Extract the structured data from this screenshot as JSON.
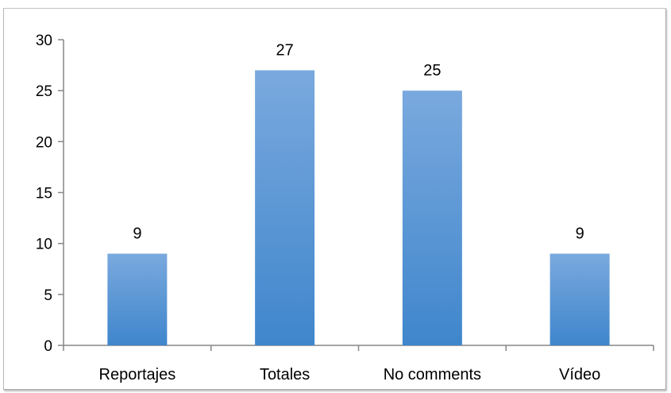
{
  "chart_data": {
    "type": "bar",
    "title": "",
    "xlabel": "",
    "ylabel": "",
    "categories": [
      "Reportajes",
      "Totales",
      "No comments",
      "Vídeo"
    ],
    "values": [
      9,
      27,
      25,
      9
    ],
    "data_labels": [
      "9",
      "27",
      "25",
      "9"
    ],
    "ylim": [
      0,
      30
    ],
    "yticks": [
      0,
      5,
      10,
      15,
      20,
      25,
      30
    ],
    "ytick_labels": [
      "0",
      "5",
      "10",
      "15",
      "20",
      "25",
      "30"
    ],
    "grid": false,
    "legend": "none",
    "colors": {
      "bar_top": "#7aa9de",
      "bar_bottom": "#3f86cc",
      "axis": "#868686"
    }
  }
}
